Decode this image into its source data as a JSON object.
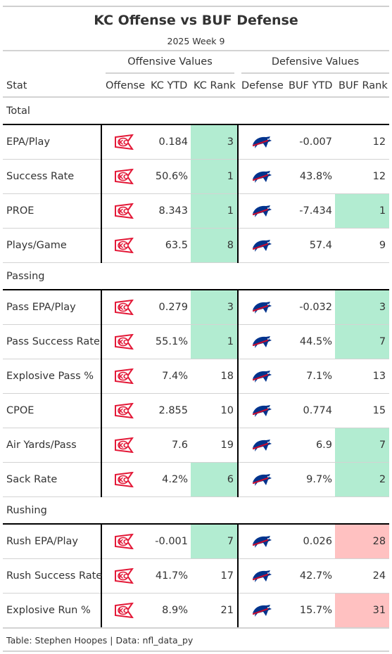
{
  "title": "KC Offense vs BUF Defense",
  "subtitle": "2025 Week 9",
  "spanners": {
    "offense": "Offensive Values",
    "defense": "Defensive Values"
  },
  "columns": {
    "stat": "Stat",
    "offense": "Offense",
    "kc_ytd": "KC YTD",
    "kc_rank": "KC Rank",
    "defense": "Defense",
    "buf_ytd": "BUF YTD",
    "buf_rank": "BUF Rank"
  },
  "logos": {
    "offense": "chiefs-arrowhead-logo",
    "defense": "bills-buffalo-logo"
  },
  "colors": {
    "good_rank": "#b2ecd1",
    "bad_rank": "#ffc1c1",
    "chiefs_red": "#e31837",
    "bills_blue": "#00338d",
    "bills_red": "#c60c30"
  },
  "groups": [
    {
      "label": "Total",
      "rows": [
        {
          "stat": "EPA/Play",
          "kc_ytd": "0.184",
          "kc_rank": "3",
          "kc_highlight": "good",
          "buf_ytd": "-0.007",
          "buf_rank": "12",
          "buf_highlight": ""
        },
        {
          "stat": "Success Rate",
          "kc_ytd": "50.6%",
          "kc_rank": "1",
          "kc_highlight": "good",
          "buf_ytd": "43.8%",
          "buf_rank": "12",
          "buf_highlight": ""
        },
        {
          "stat": "PROE",
          "kc_ytd": "8.343",
          "kc_rank": "1",
          "kc_highlight": "good",
          "buf_ytd": "-7.434",
          "buf_rank": "1",
          "buf_highlight": "good"
        },
        {
          "stat": "Plays/Game",
          "kc_ytd": "63.5",
          "kc_rank": "8",
          "kc_highlight": "good",
          "buf_ytd": "57.4",
          "buf_rank": "9",
          "buf_highlight": ""
        }
      ]
    },
    {
      "label": "Passing",
      "rows": [
        {
          "stat": "Pass EPA/Play",
          "kc_ytd": "0.279",
          "kc_rank": "3",
          "kc_highlight": "good",
          "buf_ytd": "-0.032",
          "buf_rank": "3",
          "buf_highlight": "good"
        },
        {
          "stat": "Pass Success Rate",
          "kc_ytd": "55.1%",
          "kc_rank": "1",
          "kc_highlight": "good",
          "buf_ytd": "44.5%",
          "buf_rank": "7",
          "buf_highlight": "good"
        },
        {
          "stat": "Explosive Pass %",
          "kc_ytd": "7.4%",
          "kc_rank": "18",
          "kc_highlight": "",
          "buf_ytd": "7.1%",
          "buf_rank": "13",
          "buf_highlight": ""
        },
        {
          "stat": "CPOE",
          "kc_ytd": "2.855",
          "kc_rank": "10",
          "kc_highlight": "",
          "buf_ytd": "0.774",
          "buf_rank": "15",
          "buf_highlight": ""
        },
        {
          "stat": "Air Yards/Pass",
          "kc_ytd": "7.6",
          "kc_rank": "19",
          "kc_highlight": "",
          "buf_ytd": "6.9",
          "buf_rank": "7",
          "buf_highlight": "good"
        },
        {
          "stat": "Sack Rate",
          "kc_ytd": "4.2%",
          "kc_rank": "6",
          "kc_highlight": "good",
          "buf_ytd": "9.7%",
          "buf_rank": "2",
          "buf_highlight": "good"
        }
      ]
    },
    {
      "label": "Rushing",
      "rows": [
        {
          "stat": "Rush EPA/Play",
          "kc_ytd": "-0.001",
          "kc_rank": "7",
          "kc_highlight": "good",
          "buf_ytd": "0.026",
          "buf_rank": "28",
          "buf_highlight": "bad"
        },
        {
          "stat": "Rush Success Rate",
          "kc_ytd": "41.7%",
          "kc_rank": "17",
          "kc_highlight": "",
          "buf_ytd": "42.7%",
          "buf_rank": "24",
          "buf_highlight": ""
        },
        {
          "stat": "Explosive Run %",
          "kc_ytd": "8.9%",
          "kc_rank": "21",
          "kc_highlight": "",
          "buf_ytd": "15.7%",
          "buf_rank": "31",
          "buf_highlight": "bad"
        }
      ]
    }
  ],
  "footer": "Table: Stephen Hoopes | Data: nfl_data_py"
}
